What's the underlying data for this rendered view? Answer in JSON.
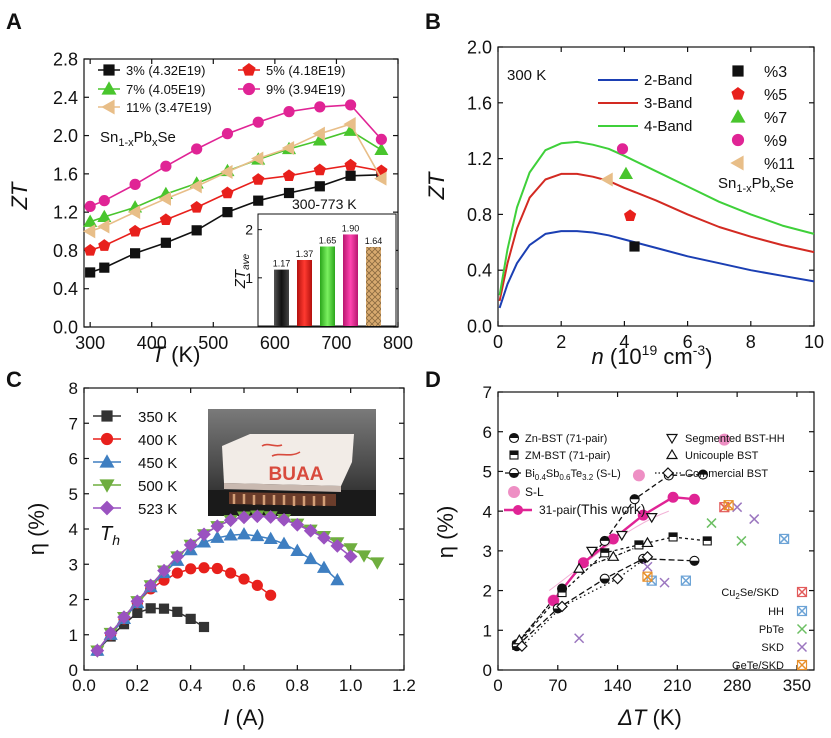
{
  "colors": {
    "black": "#111111",
    "red": "#e8201c",
    "green": "#49c52d",
    "magenta": "#e02495",
    "tan": "#e8be88",
    "blue": "#1b3fb3",
    "redline": "#d32a22",
    "greenline": "#3fd03a",
    "navy": "#2f55a8",
    "steel": "#3f7fc1",
    "leaf": "#6fae3f",
    "purple": "#9a52c0",
    "darkgray": "#333333",
    "pink": "#ee8fc4",
    "orange": "#e8902b",
    "lilac": "#9b76bf",
    "skyblue": "#6ca3d6",
    "lgreen": "#6cbf63"
  },
  "chart_data": [
    {
      "panel": "A",
      "type": "line",
      "xlabel": "T (K)",
      "ylabel": "ZT",
      "xlim": [
        290,
        800
      ],
      "ylim": [
        0.0,
        2.8
      ],
      "xticks": [
        "300",
        "400",
        "500",
        "600",
        "700",
        "800"
      ],
      "yticks": [
        "0.0",
        "0.4",
        "0.8",
        "1.2",
        "1.6",
        "2.0",
        "2.4",
        "2.8"
      ],
      "annotation": "Sn1-xPbxSe",
      "series": [
        {
          "name": "3% (4.32E19)",
          "color": "#111111",
          "marker": "square",
          "x": [
            300,
            323,
            373,
            423,
            473,
            523,
            573,
            623,
            673,
            723,
            773
          ],
          "y": [
            0.57,
            0.62,
            0.77,
            0.88,
            1.01,
            1.2,
            1.32,
            1.4,
            1.47,
            1.58,
            1.59
          ]
        },
        {
          "name": "5% (4.18E19)",
          "color": "#e8201c",
          "marker": "pentagon",
          "x": [
            300,
            323,
            373,
            423,
            473,
            523,
            573,
            623,
            673,
            723,
            773
          ],
          "y": [
            0.8,
            0.85,
            1.0,
            1.12,
            1.25,
            1.4,
            1.54,
            1.58,
            1.64,
            1.69,
            1.63
          ]
        },
        {
          "name": "7% (4.05E19)",
          "color": "#49c52d",
          "marker": "triangle",
          "x": [
            300,
            323,
            373,
            423,
            473,
            523,
            573,
            623,
            673,
            723,
            773
          ],
          "y": [
            1.1,
            1.15,
            1.25,
            1.39,
            1.5,
            1.63,
            1.75,
            1.86,
            1.95,
            2.05,
            1.85
          ]
        },
        {
          "name": "9% (3.94E19)",
          "color": "#e02495",
          "marker": "circle",
          "x": [
            300,
            323,
            373,
            423,
            473,
            523,
            573,
            623,
            673,
            723,
            773
          ],
          "y": [
            1.26,
            1.32,
            1.49,
            1.68,
            1.86,
            2.02,
            2.14,
            2.25,
            2.3,
            2.32,
            1.96
          ]
        },
        {
          "name": "11% (3.47E19)",
          "color": "#e8be88",
          "marker": "triangle-left",
          "x": [
            300,
            323,
            373,
            423,
            473,
            523,
            573,
            623,
            673,
            723,
            773
          ],
          "y": [
            1.0,
            1.05,
            1.2,
            1.34,
            1.47,
            1.62,
            1.76,
            1.87,
            2.02,
            2.12,
            1.55
          ]
        }
      ],
      "inset": {
        "type": "bar",
        "title": "300-773 K",
        "ylabel": "ZTave",
        "ylim": [
          0,
          2.2
        ],
        "yticks": [
          "1",
          "2"
        ],
        "values": [
          1.17,
          1.37,
          1.65,
          1.9,
          1.64
        ],
        "labels": [
          "1.17",
          "1.37",
          "1.65",
          "1.90",
          "1.64"
        ],
        "colors": [
          "#111111",
          "#e8201c",
          "#49c52d",
          "#e02495",
          "#e8be88"
        ]
      }
    },
    {
      "panel": "B",
      "type": "line",
      "xlabel": "n (10^19 cm^-3)",
      "ylabel": "ZT",
      "xlim": [
        0,
        10
      ],
      "ylim": [
        0.0,
        2.0
      ],
      "xticks": [
        "0",
        "2",
        "4",
        "6",
        "8",
        "10"
      ],
      "yticks": [
        "0.0",
        "0.4",
        "0.8",
        "1.2",
        "1.6",
        "2.0"
      ],
      "annotation_temp": "300 K",
      "annotation_compound": "Sn1-xPbxSe",
      "series": [
        {
          "name": "2-Band",
          "color": "#1b3fb3",
          "x": [
            0.05,
            0.3,
            0.6,
            1.0,
            1.5,
            2.0,
            2.5,
            3.0,
            3.5,
            4.0,
            5.0,
            6.0,
            7.0,
            8.0,
            9.0,
            10.0
          ],
          "y": [
            0.13,
            0.3,
            0.45,
            0.58,
            0.66,
            0.68,
            0.68,
            0.67,
            0.65,
            0.62,
            0.56,
            0.5,
            0.45,
            0.4,
            0.36,
            0.32
          ]
        },
        {
          "name": "3-Band",
          "color": "#d32a22",
          "x": [
            0.05,
            0.3,
            0.6,
            1.0,
            1.5,
            2.0,
            2.5,
            3.0,
            3.5,
            4.0,
            5.0,
            6.0,
            7.0,
            8.0,
            9.0,
            10.0
          ],
          "y": [
            0.18,
            0.45,
            0.7,
            0.92,
            1.05,
            1.09,
            1.09,
            1.07,
            1.04,
            0.99,
            0.9,
            0.8,
            0.71,
            0.64,
            0.58,
            0.53
          ]
        },
        {
          "name": "4-Band",
          "color": "#3fd03a",
          "x": [
            0.05,
            0.3,
            0.6,
            1.0,
            1.5,
            2.0,
            2.5,
            3.0,
            3.5,
            4.0,
            5.0,
            6.0,
            7.0,
            8.0,
            9.0,
            10.0
          ],
          "y": [
            0.22,
            0.55,
            0.85,
            1.1,
            1.26,
            1.31,
            1.32,
            1.3,
            1.27,
            1.22,
            1.11,
            1.0,
            0.89,
            0.8,
            0.72,
            0.66
          ]
        }
      ],
      "points": [
        {
          "name": "%3",
          "color": "#111111",
          "marker": "square",
          "x": 4.32,
          "y": 0.57
        },
        {
          "name": "%5",
          "color": "#e8201c",
          "marker": "pentagon",
          "x": 4.18,
          "y": 0.79
        },
        {
          "name": "%7",
          "color": "#49c52d",
          "marker": "triangle",
          "x": 4.05,
          "y": 1.09
        },
        {
          "name": "%9",
          "color": "#e02495",
          "marker": "circle",
          "x": 3.94,
          "y": 1.27
        },
        {
          "name": "%11",
          "color": "#e8be88",
          "marker": "triangle-left",
          "x": 3.47,
          "y": 1.05
        }
      ]
    },
    {
      "panel": "C",
      "type": "line",
      "xlabel": "I (A)",
      "ylabel": "η (%)",
      "xlim": [
        0.0,
        1.2
      ],
      "ylim": [
        0,
        8
      ],
      "xticks": [
        "0.0",
        "0.2",
        "0.4",
        "0.6",
        "0.8",
        "1.0",
        "1.2"
      ],
      "yticks": [
        "0",
        "1",
        "2",
        "3",
        "4",
        "5",
        "6",
        "7",
        "8"
      ],
      "annotation": "Th",
      "series": [
        {
          "name": "350 K",
          "color": "#333333",
          "marker": "square",
          "x": [
            0.05,
            0.1,
            0.15,
            0.2,
            0.25,
            0.3,
            0.35,
            0.4,
            0.45
          ],
          "y": [
            0.55,
            0.95,
            1.3,
            1.62,
            1.75,
            1.74,
            1.65,
            1.45,
            1.22
          ]
        },
        {
          "name": "400 K",
          "color": "#e8201c",
          "marker": "circle",
          "x": [
            0.05,
            0.1,
            0.15,
            0.2,
            0.25,
            0.3,
            0.35,
            0.4,
            0.45,
            0.5,
            0.55,
            0.6,
            0.65,
            0.7
          ],
          "y": [
            0.55,
            1.0,
            1.45,
            1.9,
            2.3,
            2.55,
            2.75,
            2.87,
            2.9,
            2.88,
            2.75,
            2.58,
            2.4,
            2.12
          ]
        },
        {
          "name": "450 K",
          "color": "#3f7fc1",
          "marker": "triangle",
          "x": [
            0.05,
            0.1,
            0.15,
            0.2,
            0.25,
            0.3,
            0.35,
            0.4,
            0.45,
            0.5,
            0.55,
            0.6,
            0.65,
            0.7,
            0.75,
            0.8,
            0.85,
            0.9,
            0.95
          ],
          "y": [
            0.55,
            1.0,
            1.45,
            1.9,
            2.35,
            2.75,
            3.1,
            3.4,
            3.62,
            3.75,
            3.82,
            3.85,
            3.8,
            3.72,
            3.58,
            3.38,
            3.15,
            2.9,
            2.55
          ]
        },
        {
          "name": "500 K",
          "color": "#6fae3f",
          "marker": "triangle-down",
          "x": [
            0.05,
            0.1,
            0.15,
            0.2,
            0.25,
            0.3,
            0.35,
            0.4,
            0.45,
            0.5,
            0.55,
            0.6,
            0.65,
            0.7,
            0.75,
            0.8,
            0.85,
            0.9,
            0.95,
            1.0,
            1.05,
            1.1
          ],
          "y": [
            0.55,
            1.05,
            1.5,
            1.95,
            2.4,
            2.82,
            3.22,
            3.55,
            3.85,
            4.08,
            4.25,
            4.35,
            4.38,
            4.36,
            4.28,
            4.15,
            3.98,
            3.8,
            3.62,
            3.45,
            3.25,
            3.05
          ]
        },
        {
          "name": "523 K",
          "color": "#9a52c0",
          "marker": "diamond",
          "x": [
            0.05,
            0.1,
            0.15,
            0.2,
            0.25,
            0.3,
            0.35,
            0.4,
            0.45,
            0.5,
            0.55,
            0.6,
            0.65,
            0.7,
            0.75,
            0.8,
            0.85,
            0.9,
            0.95,
            1.0
          ],
          "y": [
            0.55,
            1.05,
            1.5,
            1.95,
            2.4,
            2.82,
            3.22,
            3.55,
            3.85,
            4.08,
            4.25,
            4.33,
            4.36,
            4.34,
            4.26,
            4.12,
            3.95,
            3.75,
            3.52,
            3.22
          ]
        }
      ],
      "photo_text": "BUAA"
    },
    {
      "panel": "D",
      "type": "scatter",
      "xlabel": "ΔT (K)",
      "ylabel": "η (%)",
      "xlim": [
        0,
        370
      ],
      "ylim": [
        0,
        7
      ],
      "xticks": [
        "0",
        "70",
        "140",
        "210",
        "280",
        "350"
      ],
      "yticks": [
        "0",
        "1",
        "2",
        "3",
        "4",
        "5",
        "6",
        "7"
      ],
      "series": [
        {
          "name": "Zn-BST (71-pair)",
          "marker": "half-circle-top",
          "x": [
            22,
            75,
            125,
            160,
            200,
            240
          ],
          "y": [
            0.65,
            2.05,
            3.25,
            4.3,
            4.9,
            4.92
          ]
        },
        {
          "name": "ZM-BST (71-pair)",
          "marker": "half-square",
          "x": [
            22,
            75,
            125,
            165,
            205,
            245
          ],
          "y": [
            0.62,
            1.95,
            2.95,
            3.15,
            3.35,
            3.25
          ]
        },
        {
          "name": "Bi0.4Sb0.6Te3.2 (S-L)",
          "marker": "half-circle-bottom",
          "x": [
            22,
            70,
            125,
            170,
            230
          ],
          "y": [
            0.6,
            1.55,
            2.3,
            2.8,
            2.75
          ]
        },
        {
          "name": "S-L",
          "color": "#ee8fc4",
          "marker": "filled-circle",
          "x": [
            65,
            165,
            265
          ],
          "y": [
            1.75,
            4.9,
            5.8
          ]
        },
        {
          "name": "31-pair (This work)",
          "color": "#e02495",
          "marker": "open-circle-line",
          "x": [
            65,
            100,
            135,
            170,
            205,
            230
          ],
          "y": [
            1.75,
            2.7,
            3.3,
            3.9,
            4.35,
            4.3
          ]
        },
        {
          "name": "Segmented BST-HH",
          "marker": "triangle-down-open",
          "x": [
            110,
            145,
            180
          ],
          "y": [
            3.0,
            3.4,
            3.85
          ]
        },
        {
          "name": "Unicouple BST",
          "marker": "triangle-up-open",
          "x": [
            25,
            95,
            135,
            175
          ],
          "y": [
            0.75,
            2.55,
            2.85,
            3.2
          ]
        },
        {
          "name": "Commercial BST",
          "marker": "diamond-open",
          "x": [
            28,
            75,
            140,
            175
          ],
          "y": [
            0.6,
            1.6,
            2.3,
            2.85
          ]
        },
        {
          "name": "Cu2Se/SKD",
          "color": "#e25b5b",
          "marker": "box-x",
          "x": [
            265
          ],
          "y": [
            4.1
          ]
        },
        {
          "name": "HH",
          "color": "#6ca3d6",
          "marker": "box-x",
          "x": [
            180,
            220,
            335
          ],
          "y": [
            2.25,
            2.25,
            3.3
          ]
        },
        {
          "name": "PbTe",
          "color": "#6cbf63",
          "marker": "x",
          "x": [
            250,
            285
          ],
          "y": [
            3.7,
            3.25
          ]
        },
        {
          "name": "SKD",
          "color": "#9b76bf",
          "marker": "x",
          "x": [
            95,
            175,
            195,
            280,
            300
          ],
          "y": [
            0.8,
            2.6,
            2.2,
            4.1,
            3.8
          ]
        },
        {
          "name": "GeTe/SKD",
          "color": "#e8902b",
          "marker": "box-x",
          "x": [
            175,
            270
          ],
          "y": [
            2.35,
            4.15
          ]
        }
      ]
    }
  ],
  "panels": {
    "a": {
      "letter": "A",
      "xlabel_var": "T",
      "xlabel_unit": " (K)",
      "ylabel": "ZT",
      "compound_base": "Sn",
      "compound_sub1": "1-x",
      "compound_mid": "Pb",
      "compound_sub2": "x",
      "compound_end": "Se",
      "inset_ylabel_base": "ZT",
      "inset_ylabel_sub": "ave"
    },
    "b": {
      "letter": "B",
      "xlabel_var": "n",
      "xlabel_unit": " (10",
      "xlabel_exp1": "19",
      "xlabel_unit2": " cm",
      "xlabel_exp2": "-3",
      "xlabel_close": ")",
      "ylabel": "ZT",
      "compound_base": "Sn",
      "compound_sub1": "1-x",
      "compound_mid": "Pb",
      "compound_sub2": "x",
      "compound_end": "Se"
    },
    "c": {
      "letter": "C",
      "xlabel_var": "I",
      "xlabel_unit": " (A)",
      "ylabel": "η (%)",
      "th_base": "T",
      "th_sub": "h"
    },
    "d": {
      "letter": "D",
      "xlabel_var": "ΔT",
      "xlabel_unit": " (K)",
      "ylabel": "η (%)",
      "legend": {
        "zn": "Zn-BST (71-pair)",
        "zm": "ZM-BST (71-pair)",
        "bst_base": "Bi",
        "bst_s1": "0.4",
        "bst_m1": "Sb",
        "bst_s2": "0.6",
        "bst_m2": "Te",
        "bst_s3": "3.2",
        "bst_end": " (S-L)",
        "sl": "S-L",
        "pair_a": "31-pair",
        "pair_b": "(This work)",
        "seg": "Segmented BST-HH",
        "uni": "Unicouple BST",
        "com": "Commercial BST",
        "cu_base": "Cu",
        "cu_sub": "2",
        "cu_end": "Se/SKD",
        "hh": "HH",
        "pbte": "PbTe",
        "skd": "SKD",
        "gete": "GeTe/SKD"
      }
    }
  }
}
